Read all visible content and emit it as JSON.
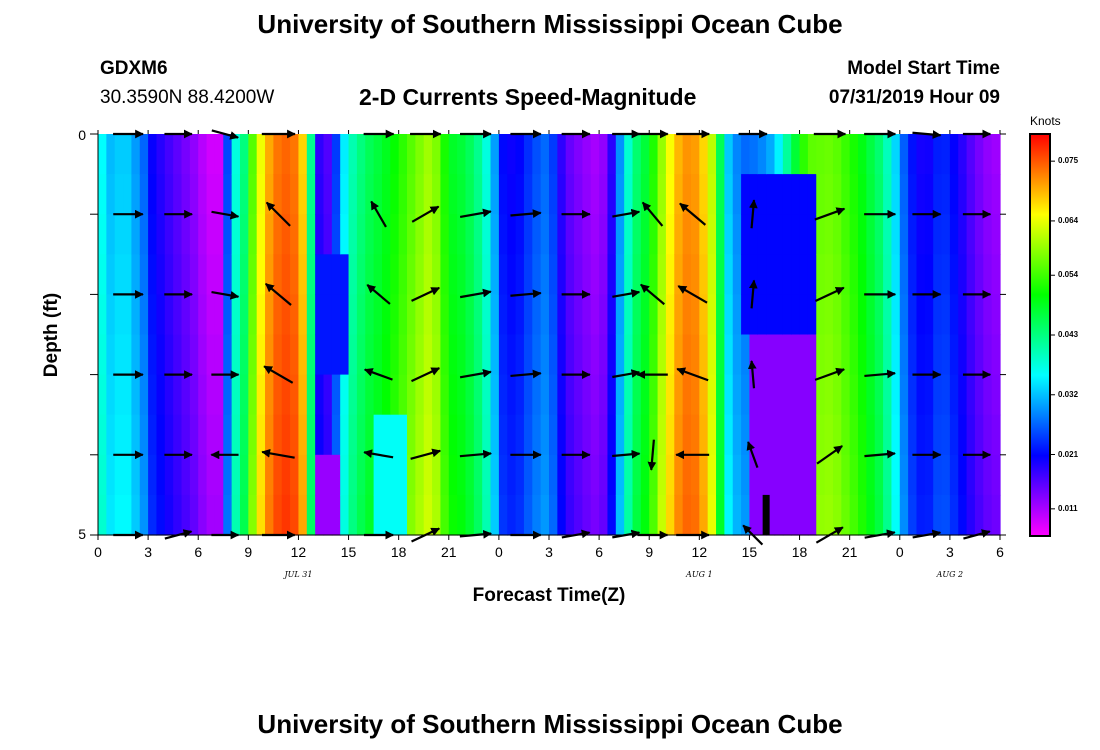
{
  "header": {
    "title": "University of Southern Mississippi Ocean Cube",
    "station": "GDXM6",
    "coordinates": "30.3590N 88.4200W",
    "subtitle": "2-D Currents Speed-Magnitude",
    "model_start_label": "Model Start Time",
    "model_start_value": "07/31/2019 Hour 09"
  },
  "footer": {
    "title": "University of Southern Mississippi Ocean Cube"
  },
  "chart_data": {
    "type": "heatmap",
    "title": "2-D Currents Speed-Magnitude",
    "xlabel": "Forecast Time(Z)",
    "ylabel": "Depth (ft)",
    "xlim": [
      0,
      54
    ],
    "ylim": [
      0,
      5
    ],
    "x_tick_labels": [
      "0",
      "3",
      "6",
      "9",
      "12",
      "15",
      "18",
      "21",
      "0",
      "3",
      "6",
      "9",
      "12",
      "15",
      "18",
      "21",
      "0",
      "3",
      "6"
    ],
    "y_tick_labels": [
      "0",
      "5"
    ],
    "date_labels": [
      {
        "label": "JUL 31",
        "x": 12
      },
      {
        "label": "AUG 1",
        "x": 36
      },
      {
        "label": "AUG 2",
        "x": 51
      }
    ],
    "colorbar": {
      "title": "Knots",
      "range": [
        0.006,
        0.08
      ],
      "ticks": [
        "0.011",
        "0.021",
        "0.032",
        "0.043",
        "0.054",
        "0.064",
        "0.075"
      ],
      "tick_values": [
        0.011,
        0.021,
        0.032,
        0.043,
        0.054,
        0.064,
        0.075
      ]
    },
    "speed_profile_knots": [
      {
        "t": 0,
        "v": 0.04
      },
      {
        "t": 0.5,
        "v": 0.034
      },
      {
        "t": 1,
        "v": 0.032
      },
      {
        "t": 1.5,
        "v": 0.036
      },
      {
        "t": 2,
        "v": 0.032
      },
      {
        "t": 2.6,
        "v": 0.03
      },
      {
        "t": 3.2,
        "v": 0.022
      },
      {
        "t": 4,
        "v": 0.019
      },
      {
        "t": 5,
        "v": 0.016
      },
      {
        "t": 6,
        "v": 0.013
      },
      {
        "t": 6.5,
        "v": 0.01
      },
      {
        "t": 7.3,
        "v": 0.01
      },
      {
        "t": 7.8,
        "v": 0.028
      },
      {
        "t": 8.3,
        "v": 0.04
      },
      {
        "t": 8.8,
        "v": 0.045
      },
      {
        "t": 9.3,
        "v": 0.058
      },
      {
        "t": 10,
        "v": 0.07
      },
      {
        "t": 11,
        "v": 0.076
      },
      {
        "t": 12,
        "v": 0.074
      },
      {
        "t": 12.5,
        "v": 0.064
      },
      {
        "t": 13,
        "v": 0.023
      },
      {
        "t": 13.5,
        "v": 0.016
      },
      {
        "t": 14,
        "v": 0.019
      },
      {
        "t": 14.5,
        "v": 0.032
      },
      {
        "t": 15,
        "v": 0.04
      },
      {
        "t": 16,
        "v": 0.046
      },
      {
        "t": 17,
        "v": 0.049
      },
      {
        "t": 18,
        "v": 0.053
      },
      {
        "t": 19,
        "v": 0.058
      },
      {
        "t": 20,
        "v": 0.062
      },
      {
        "t": 21,
        "v": 0.05
      },
      {
        "t": 22,
        "v": 0.048
      },
      {
        "t": 23,
        "v": 0.042
      },
      {
        "t": 23.7,
        "v": 0.033
      },
      {
        "t": 24,
        "v": 0.023
      },
      {
        "t": 25,
        "v": 0.021
      },
      {
        "t": 26,
        "v": 0.026
      },
      {
        "t": 27,
        "v": 0.029
      },
      {
        "t": 27.5,
        "v": 0.022
      },
      {
        "t": 28,
        "v": 0.017
      },
      {
        "t": 29,
        "v": 0.014
      },
      {
        "t": 30,
        "v": 0.012
      },
      {
        "t": 30.6,
        "v": 0.016
      },
      {
        "t": 31,
        "v": 0.026
      },
      {
        "t": 31.7,
        "v": 0.039
      },
      {
        "t": 32.2,
        "v": 0.045
      },
      {
        "t": 33,
        "v": 0.05
      },
      {
        "t": 34,
        "v": 0.064
      },
      {
        "t": 35,
        "v": 0.073
      },
      {
        "t": 36,
        "v": 0.072
      },
      {
        "t": 36.8,
        "v": 0.062
      },
      {
        "t": 37.6,
        "v": 0.035
      },
      {
        "t": 38.5,
        "v": 0.028
      },
      {
        "t": 39.5,
        "v": 0.029
      },
      {
        "t": 40.5,
        "v": 0.033
      },
      {
        "t": 41.5,
        "v": 0.046
      },
      {
        "t": 42.5,
        "v": 0.057
      },
      {
        "t": 44,
        "v": 0.058
      },
      {
        "t": 45.5,
        "v": 0.052
      },
      {
        "t": 47,
        "v": 0.044
      },
      {
        "t": 47.8,
        "v": 0.034
      },
      {
        "t": 48.5,
        "v": 0.024
      },
      {
        "t": 49.5,
        "v": 0.02
      },
      {
        "t": 50.5,
        "v": 0.025
      },
      {
        "t": 51.5,
        "v": 0.021
      },
      {
        "t": 52.5,
        "v": 0.016
      },
      {
        "t": 53.5,
        "v": 0.013
      },
      {
        "t": 54,
        "v": 0.013
      }
    ],
    "anomalies": [
      {
        "t0": 13.0,
        "t1": 14.3,
        "d0": 4.0,
        "d1": 5.0,
        "v": 0.012
      },
      {
        "t0": 13.0,
        "t1": 15.0,
        "d0": 1.5,
        "d1": 3.0,
        "v": 0.022
      },
      {
        "t0": 39.0,
        "t1": 43.0,
        "d0": 2.5,
        "d1": 5.0,
        "v": 0.013
      },
      {
        "t0": 38.6,
        "t1": 42.8,
        "d0": 0.5,
        "d1": 2.5,
        "v": 0.021
      },
      {
        "t0": 16.5,
        "t1": 18.5,
        "d0": 3.5,
        "d1": 5.0,
        "v": 0.036
      }
    ],
    "vector_times": [
      1.8,
      4.8,
      7.6,
      10.8,
      16.8,
      19.6,
      22.6,
      25.6,
      28.6,
      31.6,
      33.2,
      35.6,
      39.2,
      43.8,
      46.8,
      49.6,
      52.6
    ],
    "vector_depths": [
      0,
      1,
      2,
      3,
      4,
      5
    ],
    "vector_directions_deg": {
      "rows": [
        [
          0,
          0,
          -15,
          0,
          0,
          0,
          0,
          0,
          0,
          0,
          0,
          0,
          0,
          0,
          0,
          -5,
          0
        ],
        [
          0,
          0,
          -10,
          135,
          120,
          30,
          10,
          5,
          0,
          10,
          130,
          140,
          85,
          20,
          0,
          0,
          0
        ],
        [
          0,
          0,
          -10,
          140,
          140,
          25,
          10,
          5,
          0,
          10,
          140,
          150,
          85,
          25,
          0,
          0,
          0
        ],
        [
          0,
          0,
          0,
          150,
          160,
          25,
          10,
          5,
          0,
          10,
          180,
          160,
          95,
          20,
          5,
          0,
          0
        ],
        [
          0,
          0,
          180,
          170,
          170,
          15,
          5,
          0,
          0,
          5,
          265,
          180,
          110,
          35,
          5,
          0,
          0
        ],
        [
          0,
          15,
          0,
          0,
          0,
          25,
          5,
          0,
          10,
          10,
          0,
          0,
          135,
          30,
          10,
          10,
          15
        ]
      ]
    },
    "vector_magnitude_knots": {
      "rows": [
        [
          0.04,
          0.015,
          0.012,
          0.072,
          0.04,
          0.047,
          0.05,
          0.044,
          0.022,
          0.014,
          0.044,
          0.071,
          0.024,
          0.056,
          0.052,
          0.022,
          0.014
        ],
        [
          0.036,
          0.018,
          0.013,
          0.071,
          0.034,
          0.045,
          0.052,
          0.044,
          0.024,
          0.014,
          0.046,
          0.072,
          0.022,
          0.055,
          0.052,
          0.022,
          0.015
        ],
        [
          0.038,
          0.018,
          0.013,
          0.07,
          0.036,
          0.046,
          0.052,
          0.045,
          0.022,
          0.014,
          0.046,
          0.072,
          0.02,
          0.053,
          0.051,
          0.021,
          0.014
        ],
        [
          0.037,
          0.017,
          0.012,
          0.07,
          0.035,
          0.047,
          0.053,
          0.044,
          0.022,
          0.015,
          0.045,
          0.07,
          0.014,
          0.049,
          0.048,
          0.021,
          0.013
        ],
        [
          0.036,
          0.016,
          0.012,
          0.07,
          0.034,
          0.046,
          0.053,
          0.045,
          0.022,
          0.015,
          0.043,
          0.07,
          0.013,
          0.047,
          0.047,
          0.022,
          0.013
        ],
        [
          0.036,
          0.016,
          0.011,
          0.068,
          0.033,
          0.046,
          0.054,
          0.044,
          0.022,
          0.015,
          0.04,
          0.069,
          0.012,
          0.046,
          0.046,
          0.021,
          0.013
        ]
      ]
    },
    "bottom_marker": {
      "t": 40.0,
      "d0": 4.5,
      "d1": 5.0
    }
  }
}
